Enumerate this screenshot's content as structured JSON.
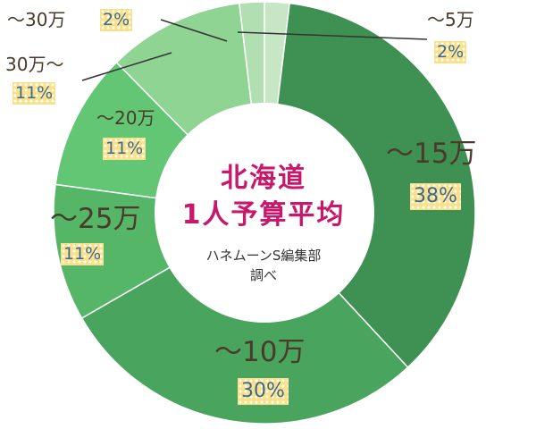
{
  "chart_data": {
    "type": "pie",
    "title": "北海道1人予算平均",
    "title_lines": [
      "北海道",
      "1人予算平均"
    ],
    "subtitle_lines": [
      "ハネムーンS編集部",
      "調べ"
    ],
    "categories": [
      "〜5万",
      "〜15万",
      "〜10万",
      "〜25万",
      "〜20万",
      "30万〜",
      "〜30万"
    ],
    "values": [
      2,
      38,
      30,
      11,
      11,
      11,
      2
    ],
    "percent_labels": [
      "2%",
      "38%",
      "30%",
      "11%",
      "11%",
      "11%",
      "2%"
    ],
    "donut": true,
    "start": "top, clockwise",
    "colors": [
      "#c6e6c6",
      "#3e9152",
      "#49a45d",
      "#55b667",
      "#62c674",
      "#8fd493",
      "#b2dfb2"
    ]
  }
}
